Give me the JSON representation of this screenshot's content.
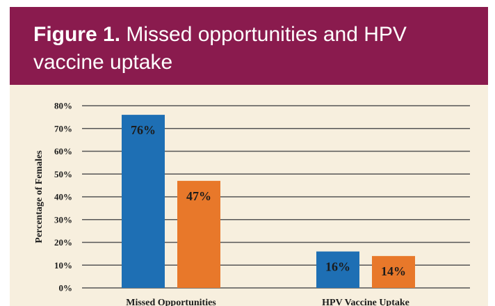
{
  "figure": {
    "label": "Figure 1.",
    "title": " Missed opportunities and HPV vaccine uptake"
  },
  "colors": {
    "banner": "#8a1b4e",
    "background": "#f7efde",
    "series_1": "#1e6fb4",
    "series_2": "#e8782a"
  },
  "chart_data": {
    "type": "bar",
    "categories": [
      "Missed Opportunities",
      "HPV Vaccine Uptake"
    ],
    "series": [
      {
        "values": [
          76,
          16
        ],
        "labels": [
          "76%",
          "16%"
        ]
      },
      {
        "values": [
          47,
          14
        ],
        "labels": [
          "47%",
          "14%"
        ]
      }
    ],
    "ylabel": "Percentage of Females",
    "ylim": [
      0,
      80
    ],
    "yticks": [
      "0%",
      "10%",
      "20%",
      "30%",
      "40%",
      "50%",
      "60%",
      "70%",
      "80%"
    ],
    "grid": true,
    "legend": "none"
  }
}
